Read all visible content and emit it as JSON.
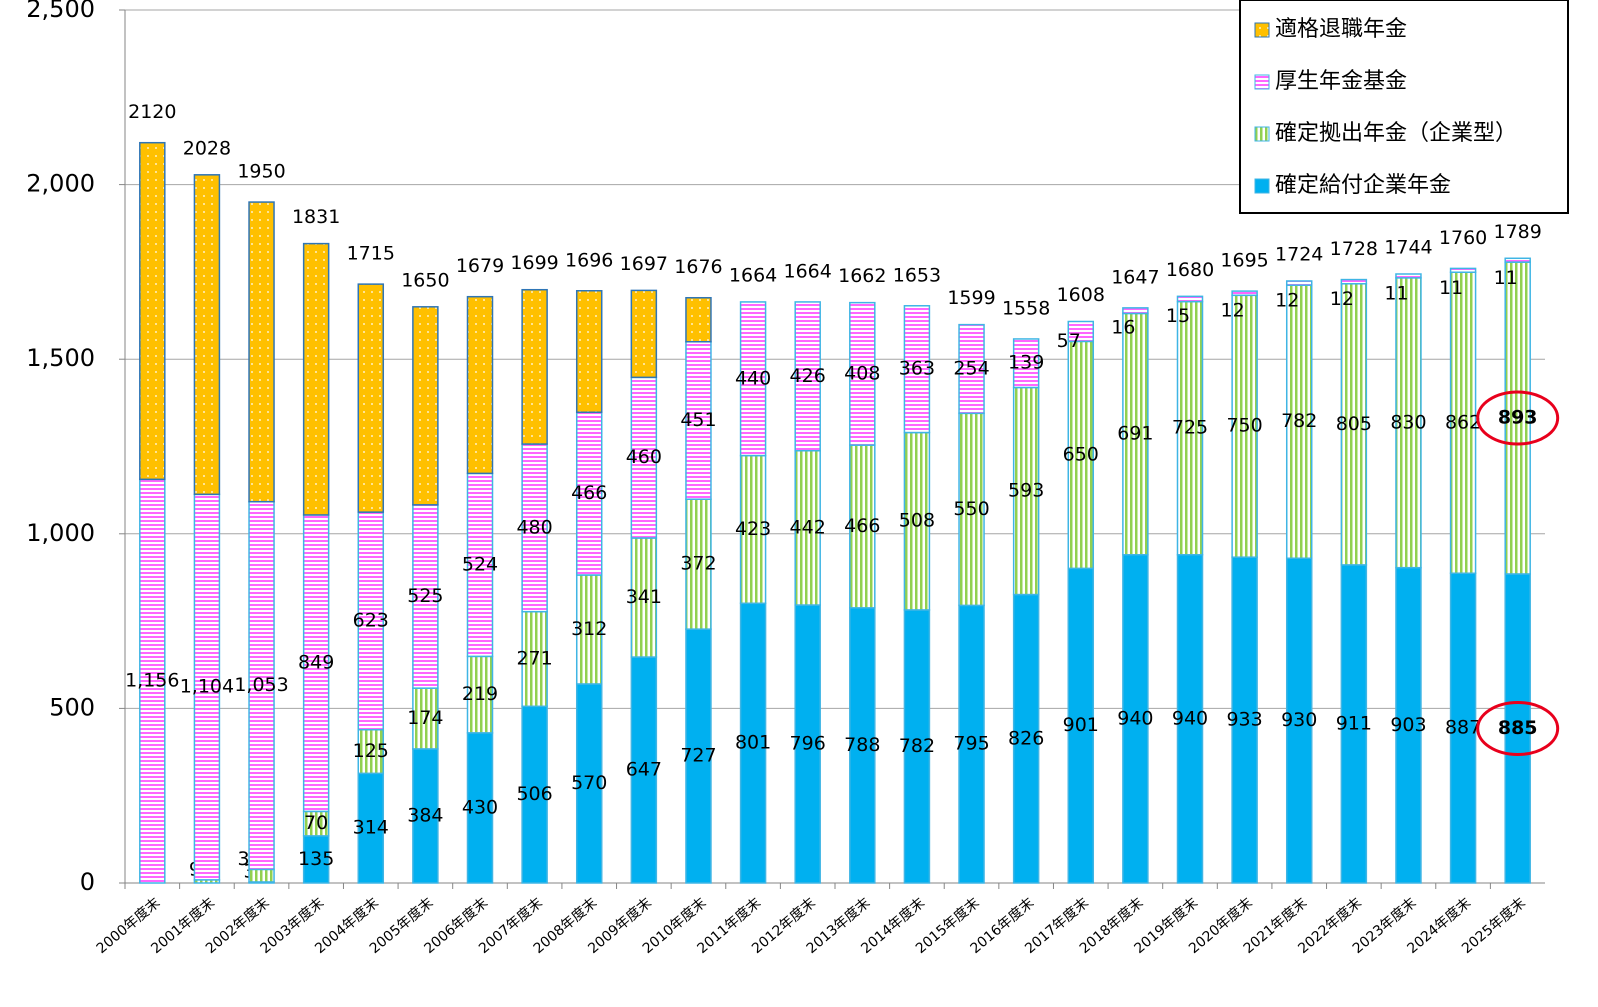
{
  "chart_data": {
    "type": "stacked_bar",
    "categories": [
      "2000年度末",
      "2001年度末",
      "2002年度末",
      "2003年度末",
      "2004年度末",
      "2005年度末",
      "2006年度末",
      "2007年度末",
      "2008年度末",
      "2009年度末",
      "2010年度末",
      "2011年度末",
      "2012年度末",
      "2013年度末",
      "2014年度末",
      "2015年度末",
      "2016年度末",
      "2017年度末",
      "2018年度末",
      "2019年度末",
      "2020年度末",
      "2021年度末",
      "2022年度末",
      "2023年度末",
      "2024年度末",
      "2025年度末"
    ],
    "series": [
      {
        "name": "確定給付企業年金",
        "color": "#00b0f0",
        "pattern": "solid",
        "values": [
          null,
          null,
          3,
          135,
          314,
          384,
          430,
          506,
          570,
          647,
          727,
          801,
          796,
          788,
          782,
          795,
          826,
          901,
          940,
          940,
          933,
          930,
          911,
          903,
          887,
          885
        ]
      },
      {
        "name": "確定拠出年金（企業型）",
        "color": "#92d050",
        "pattern": "vertical",
        "values": [
          null,
          9,
          36,
          70,
          125,
          174,
          219,
          271,
          312,
          341,
          372,
          423,
          442,
          466,
          508,
          550,
          593,
          650,
          691,
          725,
          750,
          782,
          805,
          830,
          862,
          893
        ]
      },
      {
        "name": "厚生年金基金",
        "color": "#ff66ff",
        "pattern": "horizontal",
        "values": [
          1156,
          1104,
          1053,
          849,
          623,
          525,
          524,
          480,
          466,
          460,
          451,
          440,
          426,
          408,
          363,
          254,
          139,
          57,
          16,
          15,
          12,
          12,
          12,
          11,
          11,
          11
        ],
        "value_labels": [
          "1,156",
          "1,104",
          "1,053",
          "849",
          "623",
          "525",
          "524",
          "480",
          "466",
          "460",
          "451",
          "440",
          "426",
          "408",
          "363",
          "254",
          "139",
          "57",
          "16",
          "15",
          "12",
          "12",
          "12",
          "11",
          "11",
          "11"
        ]
      },
      {
        "name": "適格退職年金",
        "color": "#ffc000",
        "pattern": "dots",
        "values": [
          964,
          915,
          858,
          777,
          653,
          567,
          506,
          442,
          348,
          249,
          126,
          null,
          null,
          null,
          null,
          null,
          null,
          null,
          null,
          null,
          null,
          null,
          null,
          null,
          null,
          null
        ]
      }
    ],
    "totals": [
      2120,
      2028,
      1950,
      1831,
      1715,
      1650,
      1679,
      1699,
      1696,
      1697,
      1676,
      1664,
      1664,
      1662,
      1653,
      1599,
      1558,
      1608,
      1647,
      1680,
      1695,
      1724,
      1728,
      1744,
      1760,
      1789
    ],
    "ylim": [
      0,
      2500
    ],
    "yticks": [
      0,
      500,
      {
        "value": 1000,
        "label": "1,000"
      },
      {
        "value": 1500,
        "label": "1,500"
      },
      {
        "value": 2000,
        "label": "2,000"
      },
      {
        "value": 2500,
        "label": "2,500"
      }
    ],
    "grid": true,
    "legend": "top-right"
  }
}
